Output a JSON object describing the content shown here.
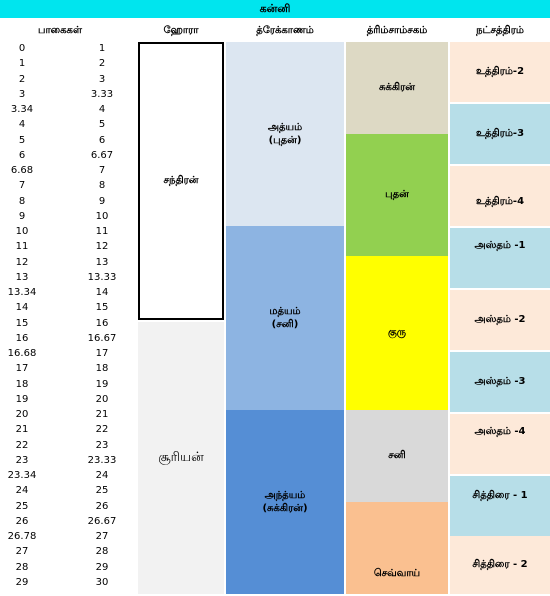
{
  "title": "கன்னி",
  "headers": {
    "padhangal": "பாகைகள்",
    "hora": "ஹோரா",
    "drekkanam": "த்ரேக்காணம்",
    "trimsamsam": "த்ரிம்சாம்சகம்",
    "nakshatram": "நட்சத்திரம்"
  },
  "degrees": [
    {
      "start": "0",
      "end": "1"
    },
    {
      "start": "1",
      "end": "2"
    },
    {
      "start": "2",
      "end": "3"
    },
    {
      "start": "3",
      "end": "3.33"
    },
    {
      "start": "3.34",
      "end": "4"
    },
    {
      "start": "4",
      "end": "5"
    },
    {
      "start": "5",
      "end": "6"
    },
    {
      "start": "6",
      "end": "6.67"
    },
    {
      "start": "6.68",
      "end": "7"
    },
    {
      "start": "7",
      "end": "8"
    },
    {
      "start": "8",
      "end": "9"
    },
    {
      "start": "9",
      "end": "10"
    },
    {
      "start": "10",
      "end": "11"
    },
    {
      "start": "11",
      "end": "12"
    },
    {
      "start": "12",
      "end": "13"
    },
    {
      "start": "13",
      "end": "13.33"
    },
    {
      "start": "13.34",
      "end": "14"
    },
    {
      "start": "14",
      "end": "15"
    },
    {
      "start": "15",
      "end": "16"
    },
    {
      "start": "16",
      "end": "16.67"
    },
    {
      "start": "16.68",
      "end": "17"
    },
    {
      "start": "17",
      "end": "18"
    },
    {
      "start": "18",
      "end": "19"
    },
    {
      "start": "19",
      "end": "20"
    },
    {
      "start": "20",
      "end": "21"
    },
    {
      "start": "21",
      "end": "22"
    },
    {
      "start": "22",
      "end": "23"
    },
    {
      "start": "23",
      "end": "23.33"
    },
    {
      "start": "23.34",
      "end": "24"
    },
    {
      "start": "24",
      "end": "25"
    },
    {
      "start": "25",
      "end": "26"
    },
    {
      "start": "26",
      "end": "26.67"
    },
    {
      "start": "26.78",
      "end": "27"
    },
    {
      "start": "27",
      "end": "28"
    },
    {
      "start": "28",
      "end": "29"
    },
    {
      "start": "29",
      "end": "30"
    }
  ],
  "hora": [
    {
      "label": "சந்திரன்",
      "color": "#ffffff"
    },
    {
      "label": "சூரியன்",
      "color": "#f2f2f2"
    }
  ],
  "drekkanam": [
    {
      "label": "அத்யம்\n(புதன்)",
      "color": "#dce6f1"
    },
    {
      "label": "மத்யம்\n(சனி)",
      "color": "#8db4e2"
    },
    {
      "label": "அந்த்யம்\n(சுக்கிரன்)",
      "color": "#558ed5"
    }
  ],
  "trimsamsam": [
    {
      "label": "சுக்கிரன்",
      "color": "#ddd9c4"
    },
    {
      "label": "புதன்",
      "color": "#92d050"
    },
    {
      "label": "குரு",
      "color": "#ffff00"
    },
    {
      "label": "சனி",
      "color": "#d9d9d9"
    },
    {
      "label": "செவ்வாய்",
      "color": "#fac090"
    }
  ],
  "nakshatram": [
    {
      "label": "உத்திரம்-2",
      "color": "#fde9d9"
    },
    {
      "label": "உத்திரம்-3",
      "color": "#b7dee8"
    },
    {
      "label": "உத்திரம்-4",
      "color": "#fde9d9"
    },
    {
      "label": "அஸ்தம் -1",
      "color": "#b7dee8"
    },
    {
      "label": "அஸ்தம் -2",
      "color": "#fde9d9"
    },
    {
      "label": "அஸ்தம் -3",
      "color": "#b7dee8"
    },
    {
      "label": "அஸ்தம் -4",
      "color": "#fde9d9"
    },
    {
      "label": "சித்திரை - 1",
      "color": "#b7dee8"
    },
    {
      "label": "சித்திரை - 2",
      "color": "#fde9d9"
    }
  ]
}
